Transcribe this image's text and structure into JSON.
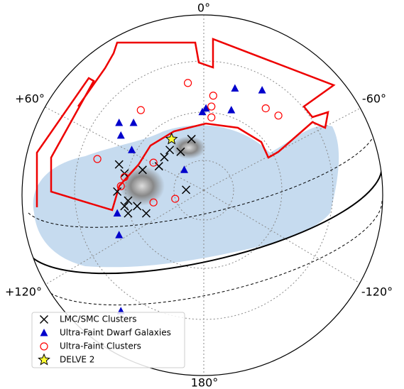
{
  "chart_data": {
    "type": "scatter",
    "xlim": [
      -1,
      1
    ],
    "ylim": [
      -1,
      1
    ],
    "annotations": [
      "0°",
      "+60°",
      "-60°",
      "+120°",
      "-120°",
      "180°"
    ],
    "legend": "lower left",
    "series": [
      {
        "name": "LMC/SMC Clusters",
        "marker": "x",
        "color": "#000000",
        "x": [
          -0.46,
          -0.43,
          -0.47,
          -0.41,
          -0.36,
          -0.31,
          -0.43,
          -0.33,
          -0.24,
          -0.21,
          -0.18,
          -0.09,
          -0.12,
          -0.06,
          -0.41
        ],
        "y": [
          0.17,
          0.12,
          0.02,
          -0.03,
          -0.06,
          -0.1,
          -0.06,
          0.14,
          0.16,
          0.21,
          0.25,
          0.03,
          0.24,
          0.31,
          -0.1
        ]
      },
      {
        "name": "Ultra-Faint Dwarf Galaxies",
        "marker": "triangle",
        "color": "#0000cc",
        "x": [
          0.18,
          0.33,
          0.02,
          0.0,
          0.16,
          -0.46,
          -0.38,
          -0.45,
          -0.39,
          -0.1,
          -0.47,
          -0.46,
          -0.45
        ],
        "y": [
          0.59,
          0.58,
          0.48,
          0.46,
          0.47,
          0.4,
          0.4,
          0.33,
          0.25,
          0.14,
          -0.1,
          -0.22,
          -0.64
        ]
      },
      {
        "name": "Ultra-Faint Clusters",
        "marker": "circle",
        "color": "#ff0000",
        "x": [
          -0.08,
          0.06,
          0.05,
          -0.34,
          0.35,
          0.42,
          0.05,
          -0.58,
          -0.27,
          -0.43,
          -0.45,
          -0.15,
          -0.27
        ],
        "y": [
          0.62,
          0.55,
          0.49,
          0.47,
          0.48,
          0.44,
          0.43,
          0.2,
          0.18,
          0.1,
          0.05,
          -0.02,
          -0.04
        ]
      },
      {
        "name": "DELVE 2",
        "marker": "star",
        "color": "#ffff33",
        "x": [
          -0.17
        ],
        "y": [
          0.31
        ]
      }
    ]
  }
}
